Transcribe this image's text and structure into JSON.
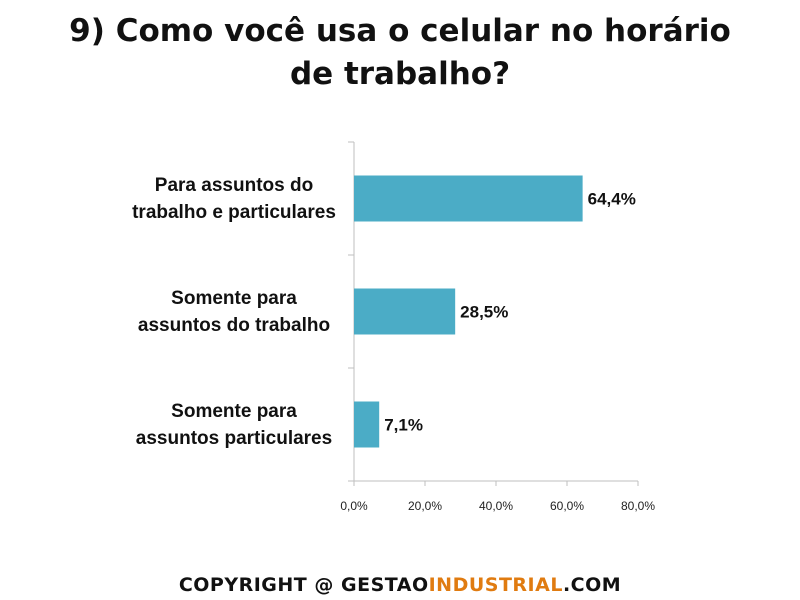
{
  "title": {
    "line1": "9) Como você usa o celular no horário",
    "line2": "de trabalho?"
  },
  "colors": {
    "bar": "#4bacc6",
    "axis": "#bfbfbf"
  },
  "chart_data": {
    "type": "bar",
    "orientation": "horizontal",
    "categories": [
      [
        "Para assuntos do",
        "trabalho e particulares"
      ],
      [
        "Somente para",
        "assuntos do trabalho"
      ],
      [
        "Somente para",
        "assuntos particulares"
      ]
    ],
    "values": [
      64.4,
      28.5,
      7.1
    ],
    "value_labels": [
      "64,4%",
      "28,5%",
      "7,1%"
    ],
    "xlim": [
      0,
      80
    ],
    "ticks": [
      0,
      20,
      40,
      60,
      80
    ],
    "tick_labels": [
      "0,0%",
      "20,0%",
      "40,0%",
      "60,0%",
      "80,0%"
    ],
    "grid": false,
    "legend": "none"
  },
  "footer": {
    "part1": "COPYRIGHT @ ",
    "part2": "GESTAO",
    "part3": "INDUSTRIAL",
    "part4": ".COM"
  }
}
